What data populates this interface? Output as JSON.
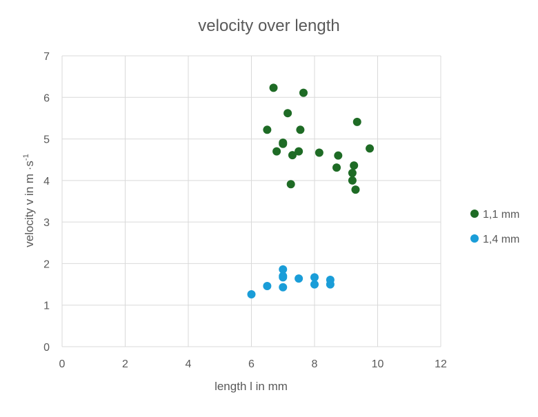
{
  "chart_data": {
    "type": "scatter",
    "title": "velocity over length",
    "xlabel": "length l in mm",
    "ylabel": "velocity v in m ·s",
    "ylabel_superscript": "-1",
    "xlim": [
      0,
      12
    ],
    "ylim": [
      0,
      7
    ],
    "xticks": [
      "0",
      "2",
      "4",
      "6",
      "8",
      "10",
      "12"
    ],
    "yticks": [
      "0",
      "1",
      "2",
      "3",
      "4",
      "5",
      "6",
      "7"
    ],
    "grid": true,
    "legend_position": "right",
    "series": [
      {
        "name": "1,1 mm",
        "color": "#1e6b25",
        "points": [
          [
            6.7,
            6.23
          ],
          [
            7.65,
            6.11
          ],
          [
            7.15,
            5.62
          ],
          [
            9.35,
            5.41
          ],
          [
            6.5,
            5.22
          ],
          [
            7.55,
            5.22
          ],
          [
            7.0,
            4.91
          ],
          [
            7.0,
            4.88
          ],
          [
            6.8,
            4.7
          ],
          [
            7.5,
            4.7
          ],
          [
            8.15,
            4.67
          ],
          [
            9.75,
            4.77
          ],
          [
            7.3,
            4.61
          ],
          [
            8.75,
            4.6
          ],
          [
            9.25,
            4.36
          ],
          [
            8.7,
            4.31
          ],
          [
            9.2,
            4.18
          ],
          [
            9.2,
            4.0
          ],
          [
            7.25,
            3.91
          ],
          [
            9.3,
            3.78
          ]
        ]
      },
      {
        "name": "1,4 mm",
        "color": "#1a9dd8",
        "points": [
          [
            7.0,
            1.86
          ],
          [
            7.0,
            1.7
          ],
          [
            7.0,
            1.67
          ],
          [
            8.0,
            1.67
          ],
          [
            7.5,
            1.64
          ],
          [
            8.5,
            1.61
          ],
          [
            8.0,
            1.5
          ],
          [
            8.5,
            1.5
          ],
          [
            6.5,
            1.46
          ],
          [
            7.0,
            1.43
          ],
          [
            6.0,
            1.26
          ]
        ]
      }
    ]
  }
}
